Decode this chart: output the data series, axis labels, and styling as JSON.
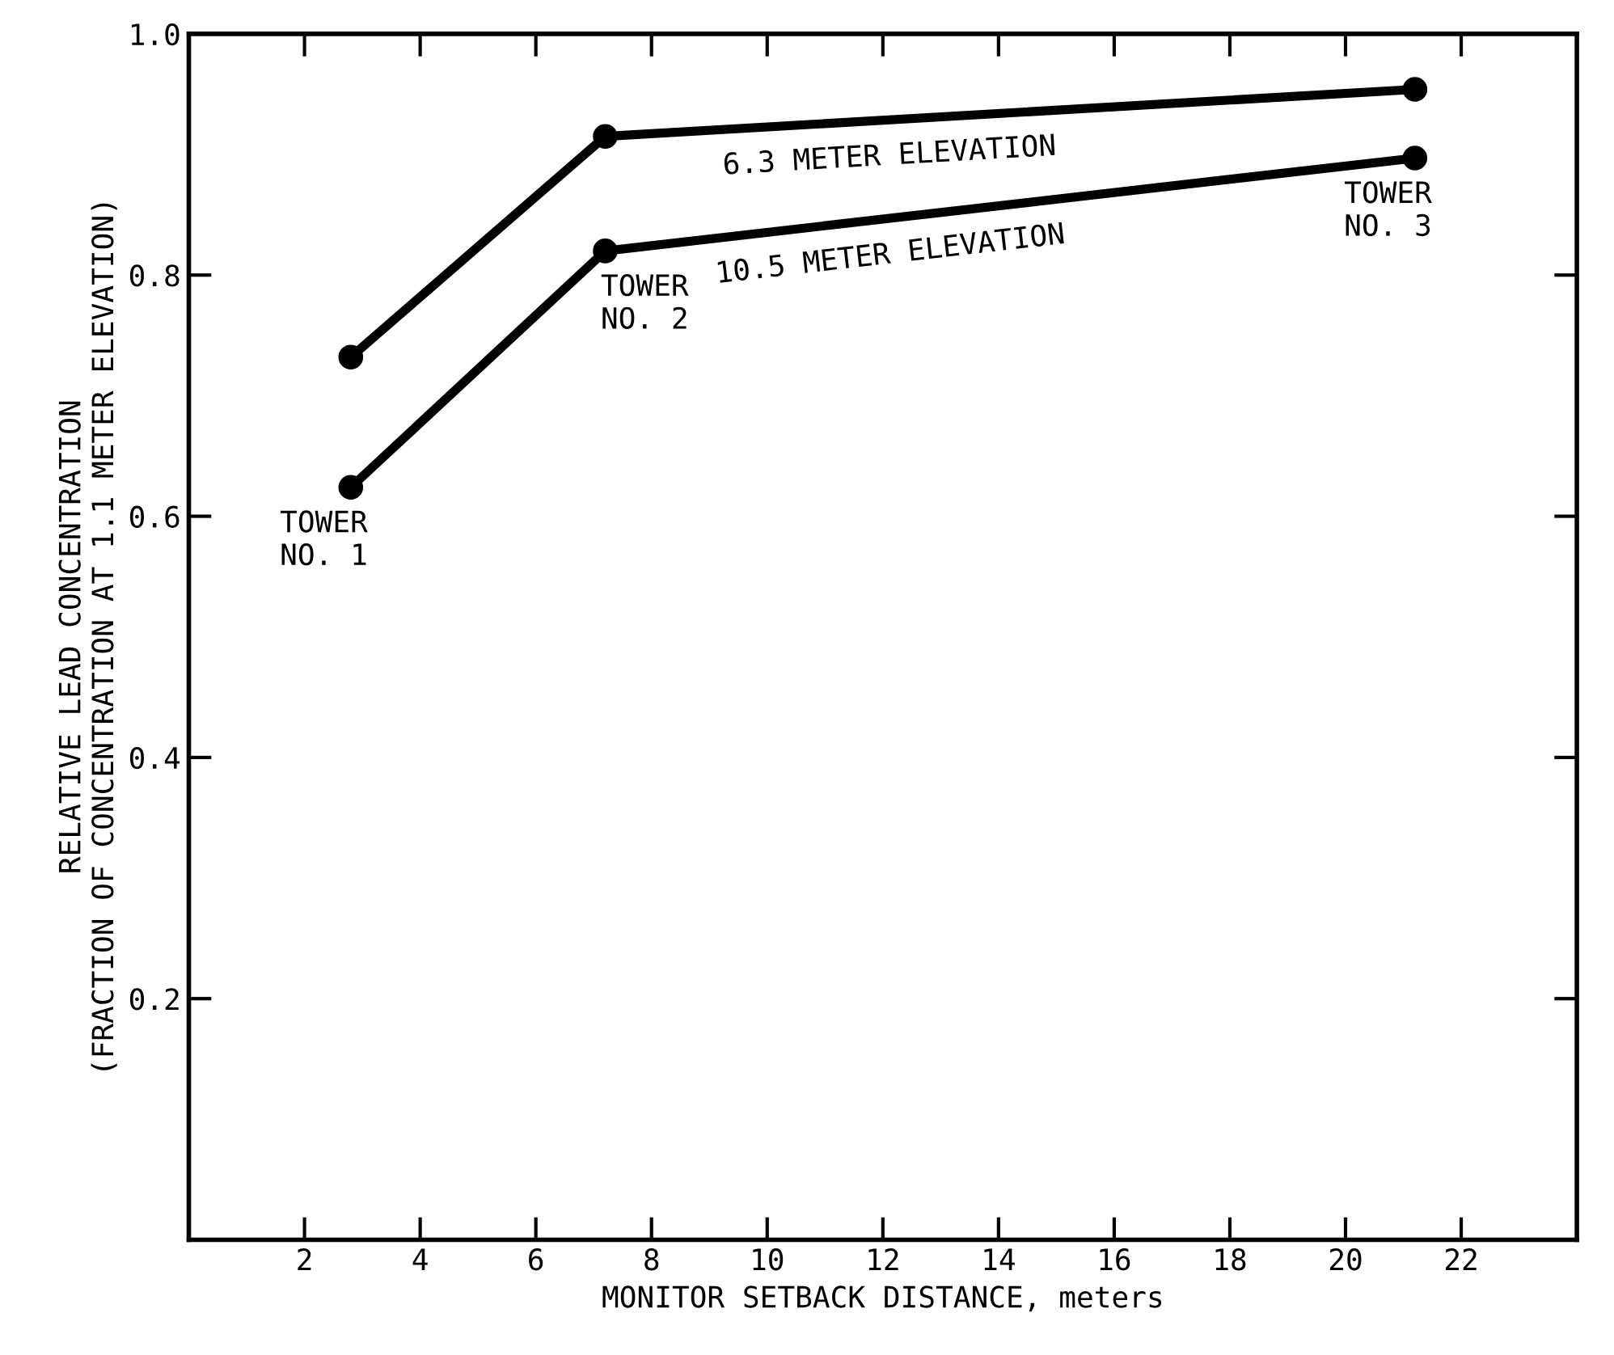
{
  "chart_data": {
    "type": "line",
    "xlabel": "MONITOR SETBACK DISTANCE, meters",
    "ylabel": "RELATIVE LEAD CONCENTRATION\n(FRACTION OF CONCENTRATION AT 1.1 METER ELEVATION)",
    "x": [
      2.8,
      7.2,
      21.2
    ],
    "series": [
      {
        "name": "6.3 METER ELEVATION",
        "color": "#000000",
        "values": [
          0.732,
          0.915,
          0.954
        ]
      },
      {
        "name": "10.5 METER ELEVATION",
        "color": "#000000",
        "values": [
          0.624,
          0.82,
          0.897
        ]
      }
    ],
    "marker": "circle",
    "line_style": "solid",
    "grid": false,
    "legend": false,
    "xlim": [
      0,
      24
    ],
    "ylim": [
      0,
      1.0
    ],
    "xticks": [
      2,
      4,
      6,
      8,
      10,
      12,
      14,
      16,
      18,
      20,
      22
    ],
    "yticks": [
      {
        "value": 0.2,
        "label": "0.2"
      },
      {
        "value": 0.4,
        "label": "0.4"
      },
      {
        "value": 0.6,
        "label": "0.6"
      },
      {
        "value": 0.8,
        "label": "0.8"
      },
      {
        "value": 1.0,
        "label": "1.0"
      }
    ],
    "annotations": [
      {
        "text": "TOWER\nNO. 1",
        "x": 2.8,
        "y": 0.624
      },
      {
        "text": "TOWER\nNO. 2",
        "x": 7.2,
        "y": 0.82
      },
      {
        "text": "TOWER\nNO. 3",
        "x": 21.2,
        "y": 0.897
      }
    ]
  }
}
